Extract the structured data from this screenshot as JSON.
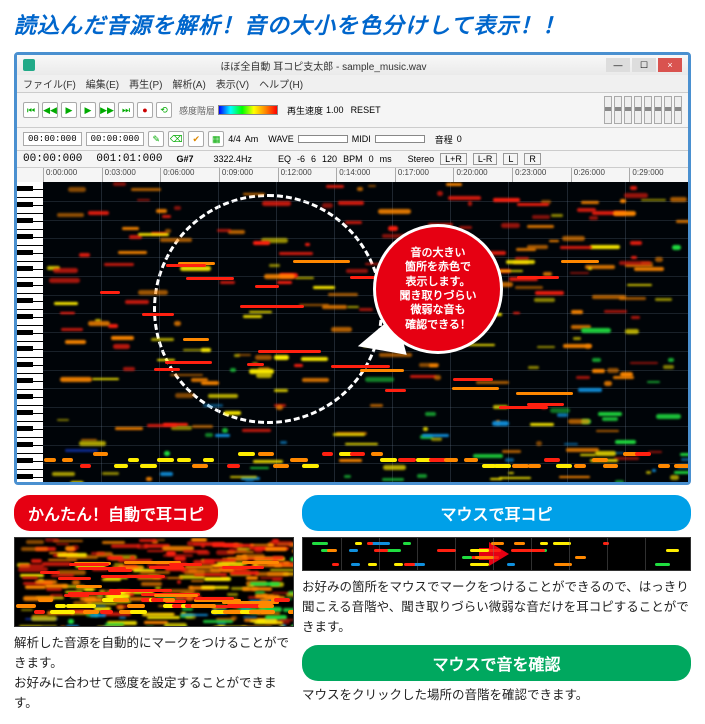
{
  "headline": "読込んだ音源を解析！音の大小を色分けして表示！！",
  "window": {
    "title": "ほぼ全自動 耳コピ支太郎 - sample_music.wav",
    "menu": [
      "ファイル(F)",
      "編集(E)",
      "再生(P)",
      "解析(A)",
      "表示(V)",
      "ヘルプ(H)"
    ],
    "time1": "00:00:000",
    "time2": "001:01:000",
    "note": "G#7",
    "freq": "3322.4Hz",
    "labels": {
      "wave": "WAVE",
      "midi": "MIDI",
      "eq": "EQ",
      "bpm": "BPM",
      "ms": "ms",
      "stereo": "Stereo",
      "speed": "再生速度",
      "pitch": "音程",
      "reset": "RESET"
    },
    "vals": {
      "eq1": "-6",
      "eq2": "6",
      "bpm": "120",
      "bpm2": "0",
      "speed": "1.00",
      "speed2": "1.0",
      "pitch": "0",
      "pitch2": "0"
    },
    "timesig": "4/4",
    "key": "Am",
    "ruler": [
      "0:00:000",
      "0:03:000",
      "0:06:000",
      "0:09:000",
      "0:12:000",
      "0:14:000",
      "0:17:000",
      "0:20:000",
      "0:23:000",
      "0:26:000",
      "0:29:000"
    ]
  },
  "callout": "音の大きい\n箇所を赤色で\n表示します。\n聞き取りづらい\n微弱な音も\n確認できる！",
  "left": {
    "badge": "かんたん！自動で耳コピ",
    "desc": "解析した音源を自動的にマークをつけることができます。\nお好みに合わせて感度を設定することができます。"
  },
  "right": {
    "badge1": "マウスで耳コピ",
    "desc1": "お好みの箇所をマウスでマークをつけることができるので、はっきり聞こえる音階や、聞き取りづらい微弱な音だけを耳コピすることができます。",
    "badge2": "マウスで音を確認",
    "desc2": "マウスをクリックした場所の音階を確認できます。"
  },
  "colors": {
    "red": "#ff2010",
    "orange": "#ff8800",
    "yellow": "#ffee00",
    "green": "#20dd40",
    "cyan": "#1090dd",
    "blue": "#1030a0",
    "dblue": "#081840"
  }
}
